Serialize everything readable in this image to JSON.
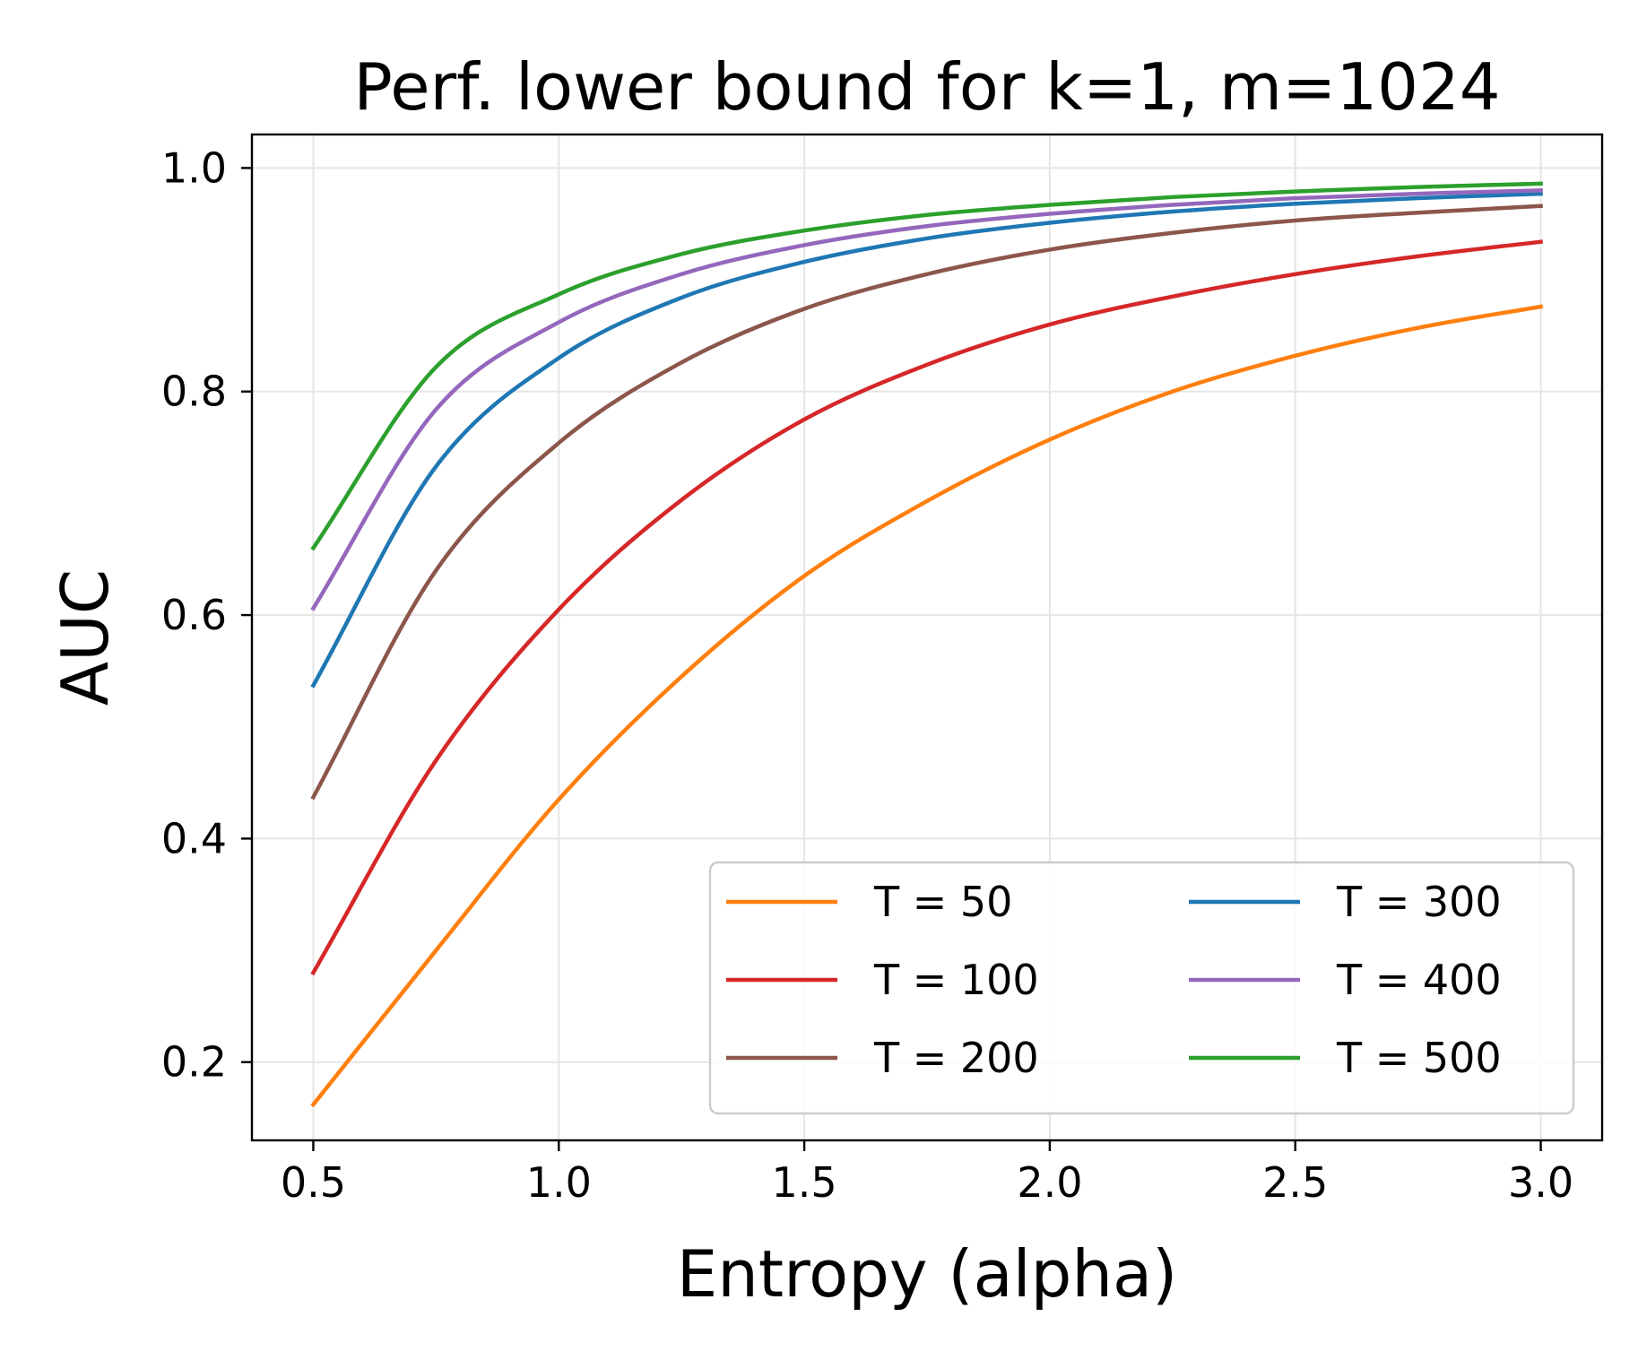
{
  "chart_data": {
    "type": "line",
    "title": "Perf. lower bound for k=1, m=1024",
    "xlabel": "Entropy (alpha)",
    "ylabel": "AUC",
    "xlim": [
      0.375,
      3.125
    ],
    "ylim": [
      0.13,
      1.03
    ],
    "xticks": [
      0.5,
      1.0,
      1.5,
      2.0,
      2.5,
      3.0
    ],
    "xtick_labels": [
      "0.5",
      "1.0",
      "1.5",
      "2.0",
      "2.5",
      "3.0"
    ],
    "yticks": [
      0.2,
      0.4,
      0.6,
      0.8,
      1.0
    ],
    "ytick_labels": [
      "0.2",
      "0.4",
      "0.6",
      "0.8",
      "1.0"
    ],
    "grid": true,
    "legend_position": "lower-right",
    "legend_columns": 2,
    "x": [
      0.5,
      0.75,
      1.0,
      1.25,
      1.5,
      1.75,
      2.0,
      2.25,
      2.5,
      2.75,
      3.0
    ],
    "series": [
      {
        "name": "T = 50",
        "color": "#ff7f0e",
        "values": [
          0.162,
          0.3,
          0.435,
          0.545,
          0.635,
          0.702,
          0.757,
          0.8,
          0.832,
          0.857,
          0.876
        ]
      },
      {
        "name": "T = 100",
        "color": "#d62728",
        "values": [
          0.28,
          0.47,
          0.605,
          0.703,
          0.775,
          0.824,
          0.86,
          0.885,
          0.905,
          0.921,
          0.934
        ]
      },
      {
        "name": "T = 200",
        "color": "#8c564b",
        "values": [
          0.437,
          0.64,
          0.754,
          0.826,
          0.874,
          0.905,
          0.927,
          0.942,
          0.953,
          0.96,
          0.966
        ]
      },
      {
        "name": "T = 300",
        "color": "#1f77b4",
        "values": [
          0.537,
          0.733,
          0.83,
          0.884,
          0.916,
          0.937,
          0.951,
          0.961,
          0.968,
          0.973,
          0.977
        ]
      },
      {
        "name": "T = 400",
        "color": "#9467bd",
        "values": [
          0.606,
          0.784,
          0.862,
          0.905,
          0.931,
          0.948,
          0.959,
          0.967,
          0.973,
          0.977,
          0.98
        ]
      },
      {
        "name": "T = 500",
        "color": "#2ca02c",
        "values": [
          0.66,
          0.822,
          0.887,
          0.923,
          0.944,
          0.958,
          0.967,
          0.974,
          0.979,
          0.983,
          0.986
        ]
      }
    ]
  }
}
